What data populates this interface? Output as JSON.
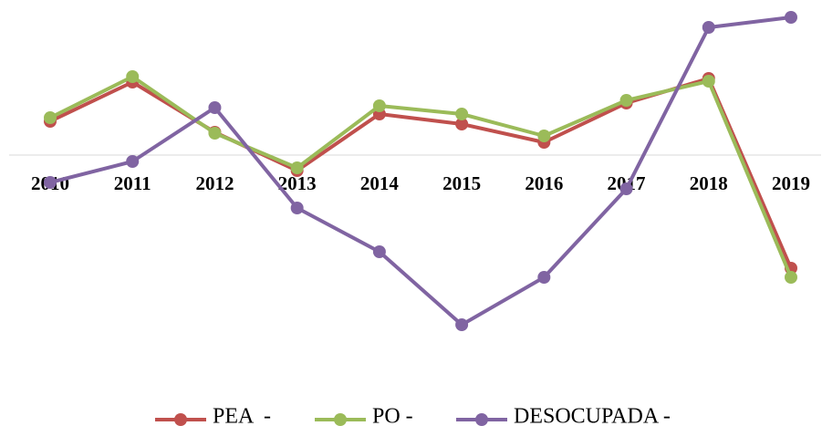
{
  "chart_data": {
    "type": "line",
    "categories": [
      "2010",
      "2011",
      "2012",
      "2013",
      "2014",
      "2015",
      "2016",
      "2017",
      "2018",
      "2019"
    ],
    "series": [
      {
        "name": "PEA  -",
        "color": "#c0504d",
        "values": [
          3.7,
          8.0,
          2.5,
          -1.7,
          4.5,
          3.4,
          1.4,
          5.7,
          8.4,
          -12.4
        ]
      },
      {
        "name": "PO -",
        "color": "#9bbb59",
        "values": [
          4.1,
          8.6,
          2.4,
          -1.4,
          5.4,
          4.5,
          2.1,
          6.0,
          8.1,
          -13.4
        ]
      },
      {
        "name": "DESOCUPADA -",
        "color": "#8064a2",
        "values": [
          -3.0,
          -0.7,
          5.2,
          -5.8,
          -10.6,
          -18.6,
          -13.4,
          -3.7,
          14.0,
          15.1
        ]
      }
    ],
    "ylim": [
      -23,
      17
    ],
    "legend": "bottom"
  }
}
